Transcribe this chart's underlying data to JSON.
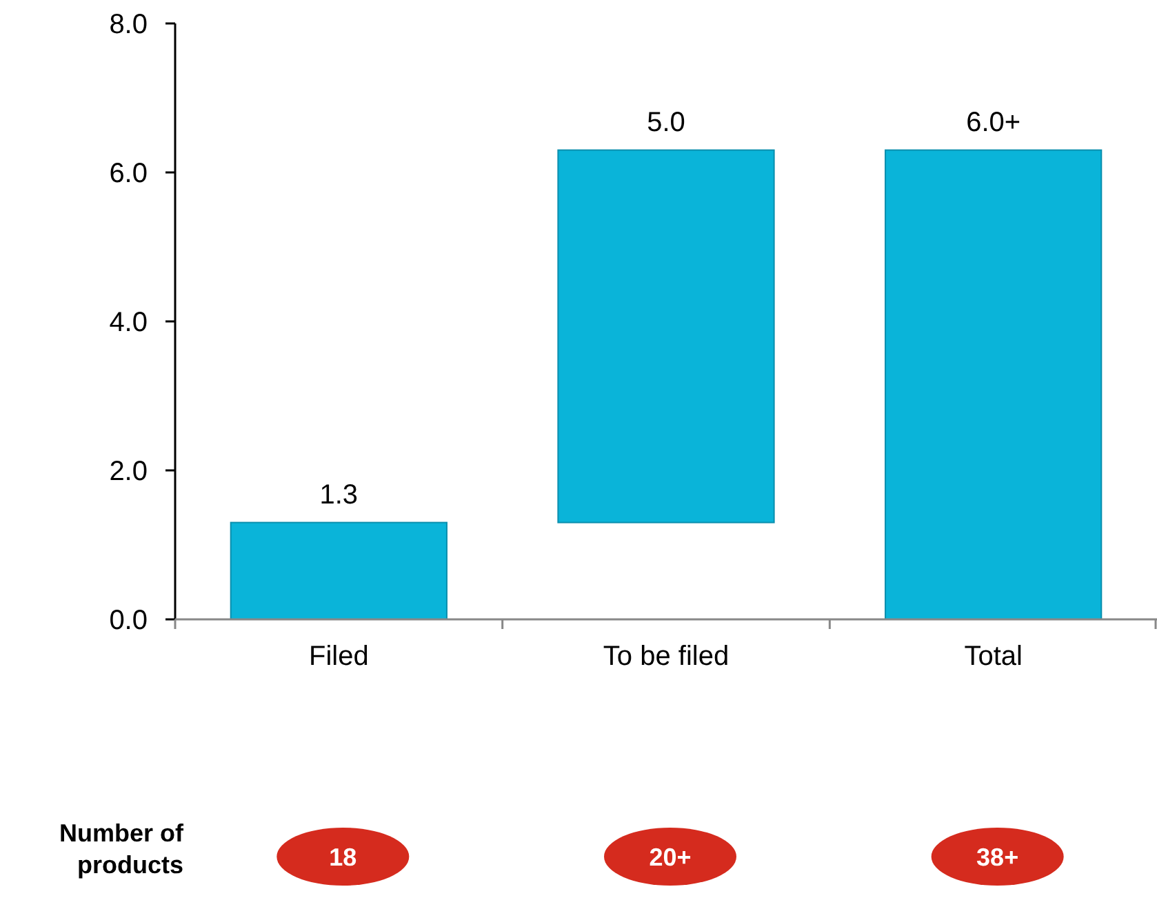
{
  "chart_data": {
    "type": "bar",
    "categories": [
      "Filed",
      "To be filed",
      "Total"
    ],
    "values": [
      1.3,
      5.0,
      6.3
    ],
    "base": [
      0,
      1.3,
      0
    ],
    "value_labels": [
      "1.3",
      "5.0",
      "6.0+"
    ],
    "color": "#0ab4d9",
    "ylim": [
      0,
      8
    ],
    "yticks": [
      {
        "value": 0,
        "label": "0.0"
      },
      {
        "value": 2,
        "label": "2.0"
      },
      {
        "value": 4,
        "label": "4.0"
      },
      {
        "value": 6,
        "label": "6.0"
      },
      {
        "value": 8,
        "label": "8.0"
      }
    ],
    "grid": false,
    "annotations": [
      "Number of products",
      "18",
      "20+",
      "38+"
    ]
  }
}
